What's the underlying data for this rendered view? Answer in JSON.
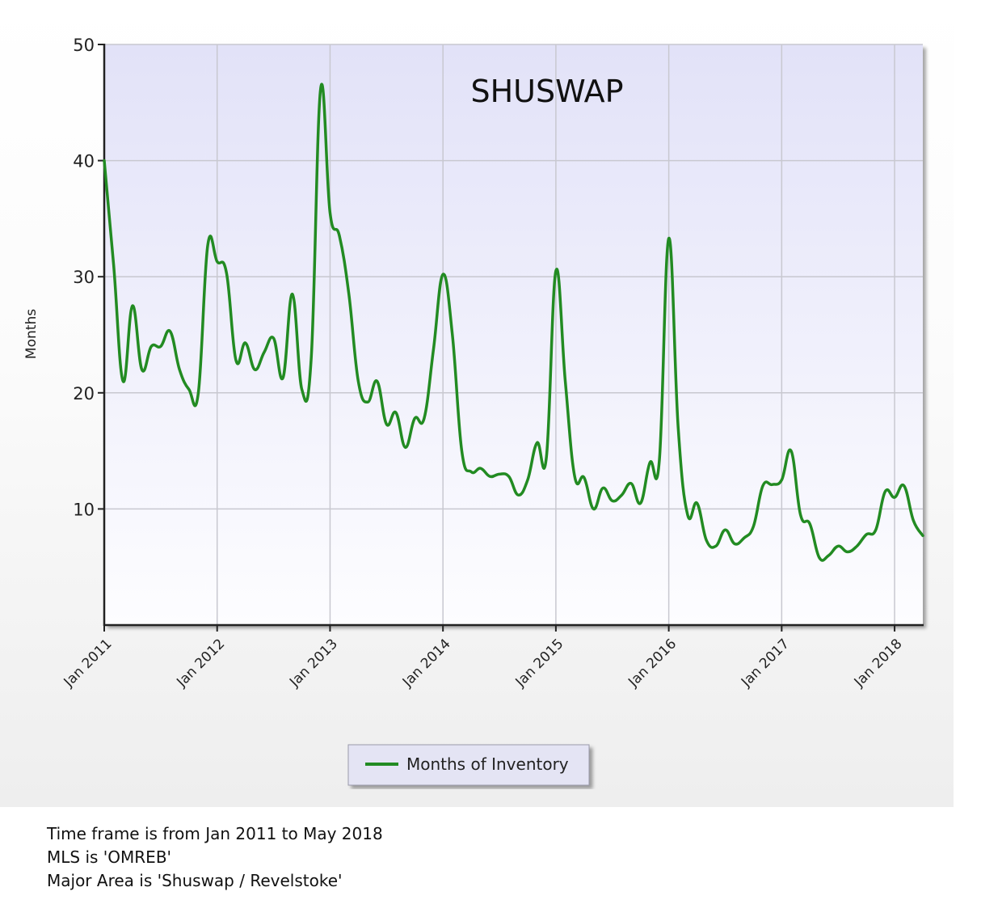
{
  "chart_data": {
    "type": "line",
    "title": "SHUSWAP",
    "ylabel": "Months",
    "xlabel": "",
    "ylim": [
      0,
      50
    ],
    "xlim": [
      "Jan 2011",
      "Apr 2018"
    ],
    "yticks": [
      10,
      20,
      30,
      40,
      50
    ],
    "xtick_labels": [
      "Jan 2011",
      "Jan 2012",
      "Jan 2013",
      "Jan 2014",
      "Jan 2015",
      "Jan 2016",
      "Jan 2017",
      "Jan 2018"
    ],
    "grid": true,
    "legend_position": "bottom-center",
    "x": [
      "Jan 2011",
      "Feb 2011",
      "Mar 2011",
      "Apr 2011",
      "May 2011",
      "Jun 2011",
      "Jul 2011",
      "Aug 2011",
      "Sep 2011",
      "Oct 2011",
      "Nov 2011",
      "Dec 2011",
      "Jan 2012",
      "Feb 2012",
      "Mar 2012",
      "Apr 2012",
      "May 2012",
      "Jun 2012",
      "Jul 2012",
      "Aug 2012",
      "Sep 2012",
      "Oct 2012",
      "Nov 2012",
      "Dec 2012",
      "Jan 2013",
      "Feb 2013",
      "Mar 2013",
      "Apr 2013",
      "May 2013",
      "Jun 2013",
      "Jul 2013",
      "Aug 2013",
      "Sep 2013",
      "Oct 2013",
      "Nov 2013",
      "Dec 2013",
      "Jan 2014",
      "Feb 2014",
      "Mar 2014",
      "Apr 2014",
      "May 2014",
      "Jun 2014",
      "Jul 2014",
      "Aug 2014",
      "Sep 2014",
      "Oct 2014",
      "Nov 2014",
      "Dec 2014",
      "Jan 2015",
      "Feb 2015",
      "Mar 2015",
      "Apr 2015",
      "May 2015",
      "Jun 2015",
      "Jul 2015",
      "Aug 2015",
      "Sep 2015",
      "Oct 2015",
      "Nov 2015",
      "Dec 2015",
      "Jan 2016",
      "Feb 2016",
      "Mar 2016",
      "Apr 2016",
      "May 2016",
      "Jun 2016",
      "Jul 2016",
      "Aug 2016",
      "Sep 2016",
      "Oct 2016",
      "Nov 2016",
      "Dec 2016",
      "Jan 2017",
      "Feb 2017",
      "Mar 2017",
      "Apr 2017",
      "May 2017",
      "Jun 2017",
      "Jul 2017",
      "Aug 2017",
      "Sep 2017",
      "Oct 2017",
      "Nov 2017",
      "Dec 2017",
      "Jan 2018",
      "Feb 2018",
      "Mar 2018",
      "Apr 2018"
    ],
    "series": [
      {
        "name": "Months of Inventory",
        "color": "#228b22",
        "values": [
          40,
          31,
          21,
          27.5,
          22,
          24,
          24,
          25.3,
          22,
          20.3,
          20,
          32.7,
          31.3,
          30.3,
          22.8,
          24.3,
          22,
          23.5,
          24.7,
          21.3,
          28.5,
          20.3,
          23,
          46.2,
          35.5,
          33.5,
          28.5,
          21,
          19.2,
          21,
          17.3,
          18.3,
          15.3,
          17.8,
          17.8,
          23.8,
          30.2,
          25,
          15,
          13.2,
          13.5,
          12.8,
          13,
          12.8,
          11.2,
          12.5,
          15.7,
          14.5,
          30.5,
          21,
          12.8,
          12.7,
          10,
          11.8,
          10.7,
          11.2,
          12.2,
          10.5,
          14,
          14.2,
          33.3,
          17,
          9.5,
          10.5,
          7.3,
          6.8,
          8.2,
          7,
          7.5,
          8.5,
          12,
          12.1,
          12.5,
          15,
          9.5,
          8.7,
          5.8,
          6,
          6.8,
          6.3,
          6.8,
          7.8,
          8.2,
          11.5,
          11,
          12,
          9,
          7.7
        ]
      }
    ]
  },
  "caption": {
    "line1": "Time frame is from Jan 2011 to May 2018",
    "line2": "MLS is 'OMREB'",
    "line3": "Major Area is 'Shuswap / Revelstoke'"
  }
}
